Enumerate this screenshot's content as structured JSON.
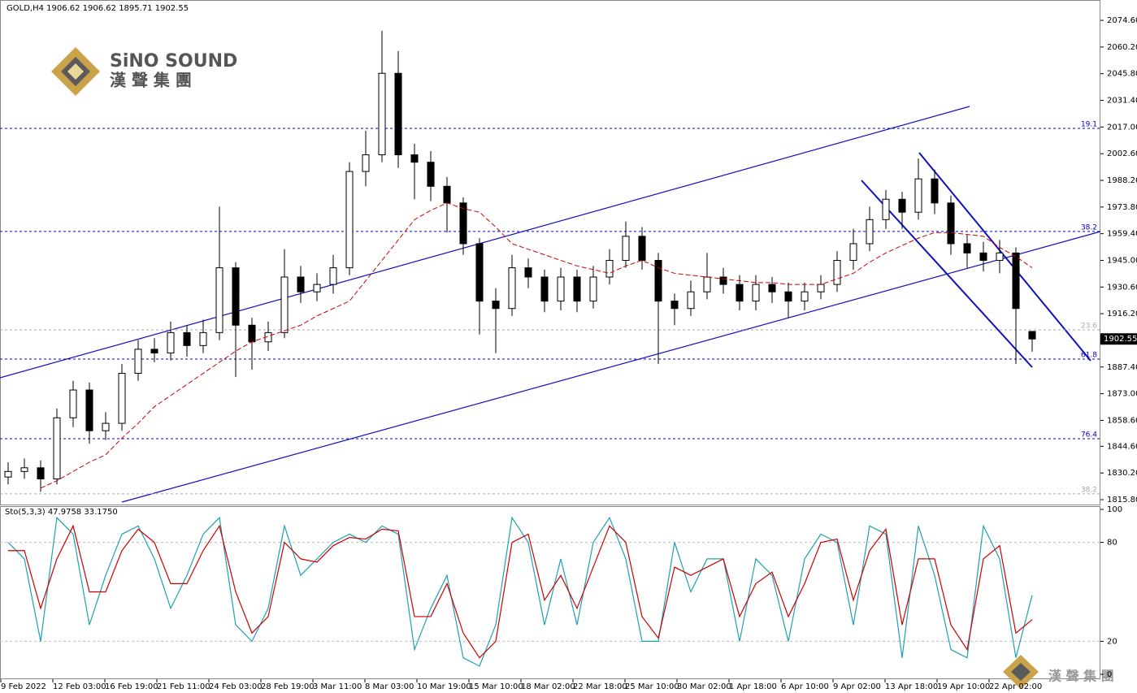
{
  "chart_data": {
    "type": "candlestick",
    "header": "GOLD,H4  1906.62 1906.62 1895.71 1902.55",
    "logo": {
      "name": "SiNO SOUND",
      "chinese": "漢 聲 集 團"
    },
    "color": "#000000",
    "open": [
      1828,
      1831,
      1833,
      1827,
      1860,
      1875,
      1853,
      1857,
      1884,
      1897,
      1895,
      1906,
      1899,
      1906,
      1941,
      1910,
      1901,
      1906,
      1936,
      1928,
      1932,
      1941,
      1993,
      2002,
      2046,
      2002,
      1998,
      1985,
      1976,
      1954,
      1923,
      1919,
      1941,
      1936,
      1923,
      1936,
      1923,
      1936,
      1945,
      1958,
      1945,
      1923,
      1919,
      1928,
      1936,
      1932,
      1923,
      1932,
      1928,
      1923,
      1928,
      1932,
      1945,
      1954,
      1967,
      1978,
      1971,
      1989,
      1976,
      1954,
      1949,
      1945,
      1949,
      1906.62
    ],
    "high": [
      1836,
      1838,
      1837,
      1865,
      1880,
      1879,
      1863,
      1889,
      1902,
      1903,
      1912,
      1910,
      1913,
      1974,
      1944,
      1914,
      1912,
      1951,
      1942,
      1938,
      1948,
      1998,
      2015,
      2069,
      2058,
      2008,
      2004,
      1990,
      1979,
      1957,
      1930,
      1948,
      1946,
      1940,
      1941,
      1940,
      1942,
      1951,
      1966,
      1963,
      1949,
      1927,
      1934,
      1949,
      1941,
      1937,
      1937,
      1936,
      1933,
      1933,
      1937,
      1950,
      1962,
      1974,
      1983,
      1982,
      2000,
      1994,
      1980,
      1959,
      1955,
      1956,
      1952,
      1906.62
    ],
    "low": [
      1824,
      1827,
      1820,
      1824,
      1855,
      1846,
      1848,
      1853,
      1880,
      1890,
      1891,
      1893,
      1895,
      1902,
      1882,
      1886,
      1896,
      1903,
      1922,
      1923,
      1927,
      1937,
      1985,
      1998,
      1995,
      1978,
      1977,
      1960,
      1948,
      1905,
      1895,
      1915,
      1930,
      1917,
      1918,
      1917,
      1919,
      1932,
      1941,
      1940,
      1889,
      1910,
      1915,
      1924,
      1927,
      1918,
      1918,
      1922,
      1914,
      1918,
      1924,
      1928,
      1940,
      1950,
      1962,
      1962,
      1967,
      1970,
      1948,
      1941,
      1939,
      1938,
      1889,
      1895.71
    ],
    "close": [
      1831,
      1833,
      1827,
      1860,
      1875,
      1853,
      1857,
      1884,
      1897,
      1895,
      1906,
      1899,
      1906,
      1941,
      1910,
      1901,
      1906,
      1936,
      1928,
      1932,
      1941,
      1993,
      2002,
      2046,
      2002,
      1998,
      1985,
      1976,
      1954,
      1923,
      1919,
      1941,
      1936,
      1923,
      1936,
      1923,
      1936,
      1945,
      1958,
      1945,
      1923,
      1919,
      1928,
      1936,
      1932,
      1923,
      1932,
      1928,
      1923,
      1928,
      1932,
      1945,
      1954,
      1967,
      1978,
      1971,
      1989,
      1976,
      1954,
      1949,
      1945,
      1949,
      1919,
      1902.55
    ],
    "ma": {
      "color": "#cc0000",
      "values": [
        null,
        null,
        1822,
        1826,
        1831,
        1836,
        1840,
        1849,
        1857,
        1866,
        1872,
        1878,
        1884,
        1890,
        1896,
        1901,
        1904,
        1907,
        1910,
        1915,
        1919,
        1923,
        1934,
        1945,
        1956,
        1967,
        1972,
        1976,
        1973,
        1971,
        1963,
        1954,
        1951,
        1948,
        1945,
        1942,
        1940,
        1938,
        1942,
        1945,
        1941,
        1938,
        1937,
        1936,
        1935,
        1934,
        1933,
        1933,
        1932,
        1932,
        1932,
        1935,
        1938,
        1944,
        1949,
        1953,
        1957,
        1960,
        1960,
        1959,
        1958,
        1952,
        1947,
        1941
      ]
    },
    "ylim": [
      1813.6,
      2083.4
    ],
    "yticks": [
      {
        "value": 2074.6,
        "label": "2074.60"
      },
      {
        "value": 2060.2,
        "label": "2060.20"
      },
      {
        "value": 2045.8,
        "label": "2045.80"
      },
      {
        "value": 2031.4,
        "label": "2031.40"
      },
      {
        "value": 2017,
        "label": "2017.00"
      },
      {
        "value": 2002.6,
        "label": "2002.60"
      },
      {
        "value": 1988.2,
        "label": "1988.20"
      },
      {
        "value": 1973.8,
        "label": "1973.80"
      },
      {
        "value": 1959.4,
        "label": "1959.40"
      },
      {
        "value": 1945,
        "label": "1945.00"
      },
      {
        "value": 1930.6,
        "label": "1930.60"
      },
      {
        "value": 1916.2,
        "label": "1916.20"
      },
      {
        "value": 1887.4,
        "label": "1887.40"
      },
      {
        "value": 1873,
        "label": "1873.00"
      },
      {
        "value": 1858.6,
        "label": "1858.60"
      },
      {
        "value": 1844.6,
        "label": "1844.60"
      },
      {
        "value": 1830.2,
        "label": "1830.20"
      },
      {
        "value": 1815.8,
        "label": "1815.80"
      }
    ],
    "levels": [
      {
        "label": "19.1",
        "value": 2016.3,
        "color": "#0000cc"
      },
      {
        "label": "38.2",
        "value": 1960.6,
        "color": "#0000cc"
      },
      {
        "label": "23.6",
        "value": 1907.5,
        "color": "#aaaaaa"
      },
      {
        "label": "61.8",
        "value": 1891.7,
        "color": "#0000cc"
      },
      {
        "label": "76.4",
        "value": 1848.7,
        "color": "#0000cc"
      },
      {
        "label": "38.2",
        "value": 1818.9,
        "color": "#aaaaaa"
      }
    ],
    "x_labels": [
      "9 Feb 2022",
      "12 Feb 03:00",
      "16 Feb 19:00",
      "21 Feb 11:00",
      "24 Feb 03:00",
      "28 Feb 19:00",
      "3 Mar 11:00",
      "8 Mar 03:00",
      "10 Mar 19:00",
      "15 Mar 10:00",
      "18 Mar 02:00",
      "22 Mar 18:00",
      "25 Mar 10:00",
      "30 Mar 02:00",
      "1 Apr 18:00",
      "6 Apr 10:00",
      "9 Apr 02:00",
      "13 Apr 18:00",
      "19 Apr 10:00",
      "22 Apr 02:00"
    ],
    "indicator": {
      "type": "line",
      "header": "Sto(5,3,3) 47.9758 33.1750",
      "ylim": [
        0,
        100
      ],
      "yticks": [
        100,
        80,
        20,
        0
      ],
      "grid": true,
      "series": [
        {
          "color": "#20a0b0",
          "values": [
            80,
            70,
            20,
            95,
            85,
            30,
            60,
            85,
            90,
            70,
            40,
            60,
            85,
            95,
            30,
            20,
            40,
            90,
            60,
            70,
            80,
            85,
            80,
            90,
            85,
            15,
            40,
            60,
            10,
            5,
            30,
            95,
            80,
            30,
            70,
            30,
            80,
            95,
            70,
            20,
            20,
            80,
            50,
            70,
            70,
            20,
            70,
            60,
            20,
            70,
            85,
            80,
            30,
            90,
            85,
            10,
            90,
            60,
            15,
            10,
            90,
            70,
            10,
            47.9758
          ]
        },
        {
          "color": "#cc0000",
          "values": [
            75,
            75,
            40,
            70,
            90,
            50,
            50,
            75,
            88,
            80,
            55,
            55,
            75,
            90,
            50,
            25,
            35,
            80,
            70,
            68,
            78,
            83,
            82,
            88,
            87,
            35,
            35,
            55,
            25,
            10,
            20,
            80,
            85,
            45,
            60,
            40,
            65,
            90,
            80,
            35,
            22,
            65,
            60,
            65,
            70,
            35,
            55,
            62,
            35,
            55,
            80,
            82,
            45,
            75,
            88,
            30,
            70,
            70,
            30,
            15,
            70,
            78,
            25,
            33.175
          ]
        }
      ]
    }
  }
}
